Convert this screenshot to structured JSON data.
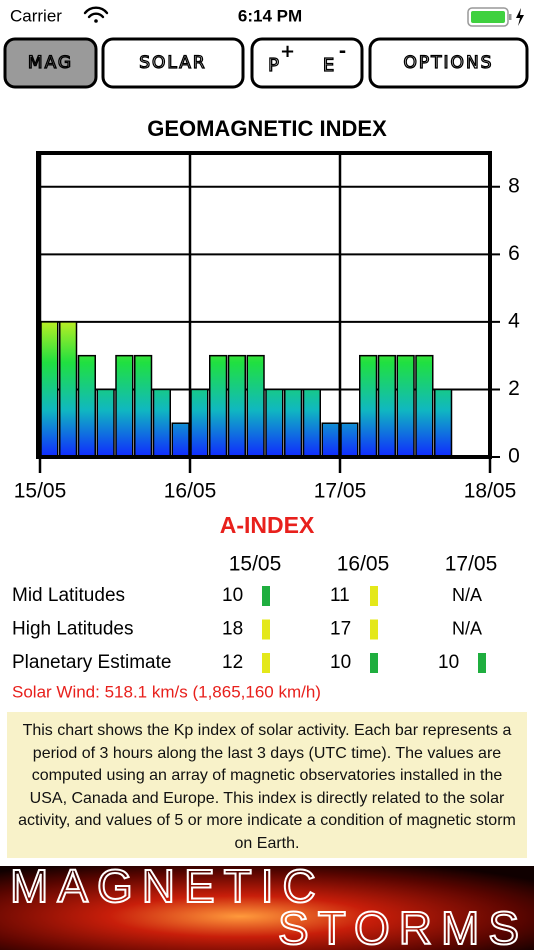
{
  "status_bar": {
    "carrier": "Carrier",
    "time": "6:14 PM"
  },
  "tabs": [
    {
      "label": [
        "MAG"
      ],
      "selected": true
    },
    {
      "label": [
        "SOLAR"
      ]
    },
    {
      "label": [
        "P",
        "+",
        "E",
        "-"
      ]
    },
    {
      "label": [
        "OPTIONS"
      ]
    }
  ],
  "chart_data": {
    "type": "bar",
    "title": "GEOMAGNETIC INDEX",
    "categories": [
      null,
      null,
      null,
      null,
      null,
      null,
      null,
      null,
      null,
      null,
      null,
      null,
      null,
      null,
      null,
      null,
      null,
      null,
      null,
      null,
      null,
      null,
      null,
      null
    ],
    "values": [
      4,
      4,
      3,
      2,
      3,
      3,
      2,
      1,
      2,
      3,
      3,
      3,
      2,
      2,
      2,
      1,
      1,
      3,
      3,
      3,
      3,
      2,
      0,
      0
    ],
    "xtick_labels": [
      "15/05",
      "16/05",
      "17/05",
      "18/05"
    ],
    "ylim": [
      0,
      9
    ],
    "yticks": [
      0,
      2,
      4,
      6,
      8
    ],
    "grid": true,
    "gradient": [
      "#1028ff",
      "#10b8c0",
      "#20e040",
      "#d0f020"
    ]
  },
  "a_index": {
    "title": "A-INDEX",
    "columns": [
      "15/05",
      "16/05",
      "17/05"
    ],
    "rows": [
      {
        "label": "Mid Latitudes",
        "cells": [
          {
            "value": 10,
            "color": "#1fae3f"
          },
          {
            "value": 11,
            "color": "#e4e81a"
          },
          {
            "value": "N/A"
          }
        ]
      },
      {
        "label": "High Latitudes",
        "cells": [
          {
            "value": 18,
            "color": "#e4e81a"
          },
          {
            "value": 17,
            "color": "#e4e81a"
          },
          {
            "value": "N/A"
          }
        ]
      },
      {
        "label": "Planetary Estimate",
        "cells": [
          {
            "value": 12,
            "color": "#e4e81a"
          },
          {
            "value": 10,
            "color": "#1fae3f"
          },
          {
            "value": 10,
            "color": "#1fae3f"
          }
        ]
      }
    ]
  },
  "solar_wind": "Solar Wind: 518.1 km/s (1,865,160 km/h)",
  "description": "This chart shows the Kp index of solar activity. Each bar represents a period of 3 hours along the last 3 days (UTC time). The values are computed using an array of magnetic observatories installed in the USA, Canada and Europe. This index is directly related to the solar activity, and values of 5 or more indicate a condition of magnetic storm on Earth.",
  "banner": [
    "MAGNETIC",
    "STORMS"
  ]
}
